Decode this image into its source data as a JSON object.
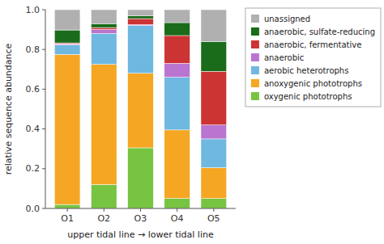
{
  "chart_data": {
    "type": "bar",
    "stacked": true,
    "categories": [
      "O1",
      "O2",
      "O3",
      "O4",
      "O5"
    ],
    "xlabel": "upper tidal line → lower tidal line",
    "ylabel": "relative sequence abundance",
    "ylim": [
      0.0,
      1.0
    ],
    "yticks": [
      {
        "value": 0,
        "label": "0.0"
      },
      0.2,
      0.4,
      0.6,
      0.8,
      {
        "value": 1,
        "label": "1.0"
      }
    ],
    "grid": false,
    "legend": "right",
    "series": [
      {
        "name": "oxygenic phototrophs",
        "color": "#77C442",
        "values": [
          0.02,
          0.12,
          0.305,
          0.05,
          0.05
        ]
      },
      {
        "name": "anoxygenic phototrophs",
        "color": "#F5A623",
        "values": [
          0.755,
          0.605,
          0.375,
          0.345,
          0.155
        ]
      },
      {
        "name": "aerobic heterotrophs",
        "color": "#6FB8E0",
        "values": [
          0.048,
          0.155,
          0.24,
          0.265,
          0.145
        ]
      },
      {
        "name": "anaerobic",
        "color": "#B975D0",
        "values": [
          0.005,
          0.02,
          0.005,
          0.07,
          0.07
        ]
      },
      {
        "name": "anaerobic, fermentative",
        "color": "#CC3333",
        "values": [
          0.005,
          0.01,
          0.03,
          0.14,
          0.27
        ]
      },
      {
        "name": "anaerobic, sulfate-reducing",
        "color": "#1A6B1A",
        "values": [
          0.065,
          0.02,
          0.015,
          0.065,
          0.15
        ]
      },
      {
        "name": "unassigned",
        "color": "#B0B0B0",
        "values": [
          0.102,
          0.07,
          0.03,
          0.065,
          0.16
        ]
      }
    ]
  }
}
